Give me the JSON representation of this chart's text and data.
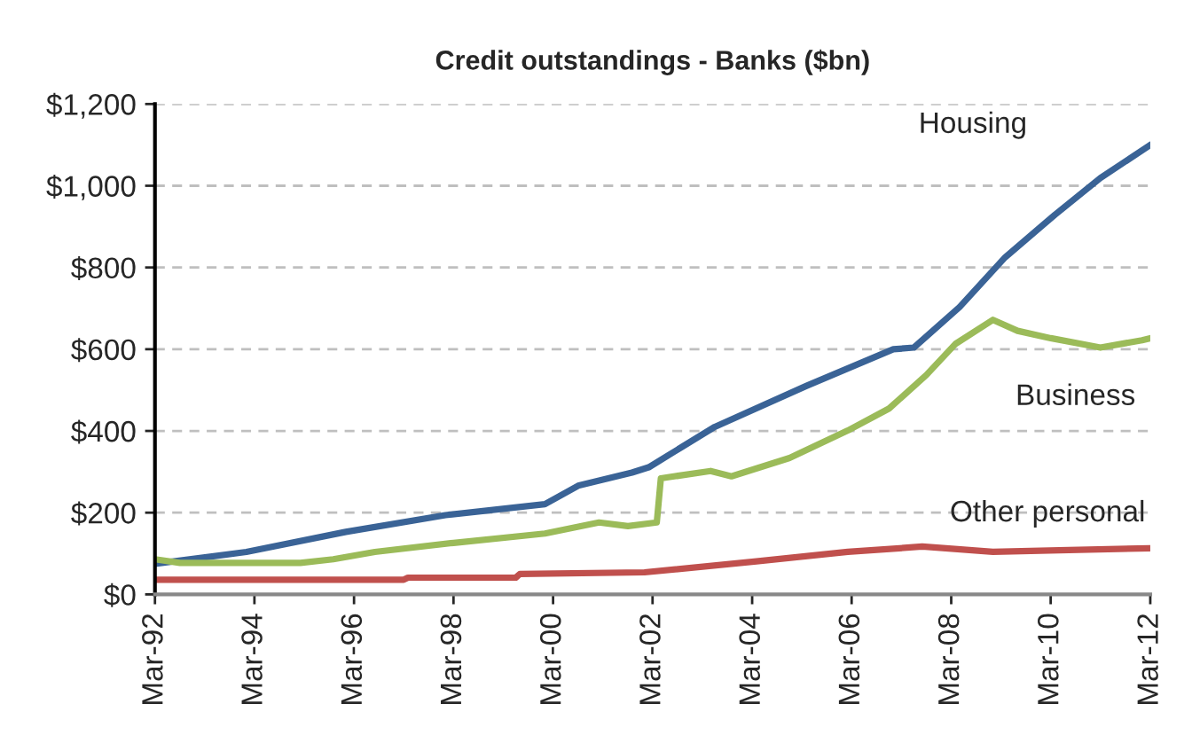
{
  "chart_data": {
    "type": "line",
    "title": "Credit outstandings - Banks ($bn)",
    "xlim": [
      "1992-03",
      "2012-03"
    ],
    "xticks": [
      {
        "value": "1992-03",
        "label": "Mar-92"
      },
      {
        "value": "1994-03",
        "label": "Mar-94"
      },
      {
        "value": "1996-03",
        "label": "Mar-96"
      },
      {
        "value": "1998-03",
        "label": "Mar-98"
      },
      {
        "value": "2000-03",
        "label": "Mar-00"
      },
      {
        "value": "2002-03",
        "label": "Mar-02"
      },
      {
        "value": "2004-03",
        "label": "Mar-04"
      },
      {
        "value": "2006-03",
        "label": "Mar-06"
      },
      {
        "value": "2008-03",
        "label": "Mar-08"
      },
      {
        "value": "2010-03",
        "label": "Mar-10"
      },
      {
        "value": "2012-03",
        "label": "Mar-12"
      }
    ],
    "ylim": [
      0,
      1200
    ],
    "yticks": [
      {
        "value": 0,
        "label": "$0"
      },
      {
        "value": 200,
        "label": "$200"
      },
      {
        "value": 400,
        "label": "$400"
      },
      {
        "value": 600,
        "label": "$600"
      },
      {
        "value": 800,
        "label": "$800"
      },
      {
        "value": 1000,
        "label": "$1,000"
      },
      {
        "value": 1200,
        "label": "$1,200"
      }
    ],
    "grid": "y",
    "legend": false,
    "marker": "none",
    "line_style": "solid",
    "series": [
      {
        "name": "Housing",
        "color": "#3a6396",
        "x": [
          "1992-03",
          "1994-01",
          "1996-01",
          "1998-01",
          "2000-01",
          "2000-09",
          "2001-10",
          "2002-02",
          "2003-06",
          "2005-04",
          "2007-01",
          "2007-06",
          "2008-05",
          "2009-04",
          "2010-04",
          "2011-03",
          "2012-03"
        ],
        "values": [
          75,
          104,
          153,
          194,
          221,
          266,
          298,
          311,
          410,
          510,
          600,
          604,
          703,
          825,
          929,
          1019,
          1100
        ]
      },
      {
        "name": "Business",
        "color": "#9bbb59",
        "x": [
          "1992-03",
          "1992-09",
          "1995-02",
          "1995-10",
          "1996-08",
          "1998-03",
          "2000-01",
          "2001-02",
          "2001-09",
          "2002-04",
          "2002-05",
          "2003-05",
          "2003-10",
          "2004-12",
          "2006-02",
          "2006-12",
          "2007-09",
          "2008-04",
          "2009-01",
          "2009-07",
          "2010-03",
          "2011-03",
          "2012-01",
          "2012-03"
        ],
        "values": [
          86,
          77,
          77,
          86,
          104,
          126,
          149,
          176,
          167,
          176,
          284,
          302,
          289,
          334,
          401,
          455,
          537,
          613,
          672,
          645,
          627,
          604,
          622,
          627
        ]
      },
      {
        "name": "Other personal",
        "color": "#c0504d",
        "x": [
          "1992-03",
          "1997-03",
          "1997-04",
          "1999-06",
          "1999-07",
          "2002-01",
          "2004-04",
          "2006-02",
          "2007-08",
          "2009-01",
          "2010-05",
          "2012-03"
        ],
        "values": [
          36,
          36,
          41,
          41,
          50,
          54,
          81,
          104,
          117,
          104,
          108,
          113
        ]
      }
    ]
  }
}
